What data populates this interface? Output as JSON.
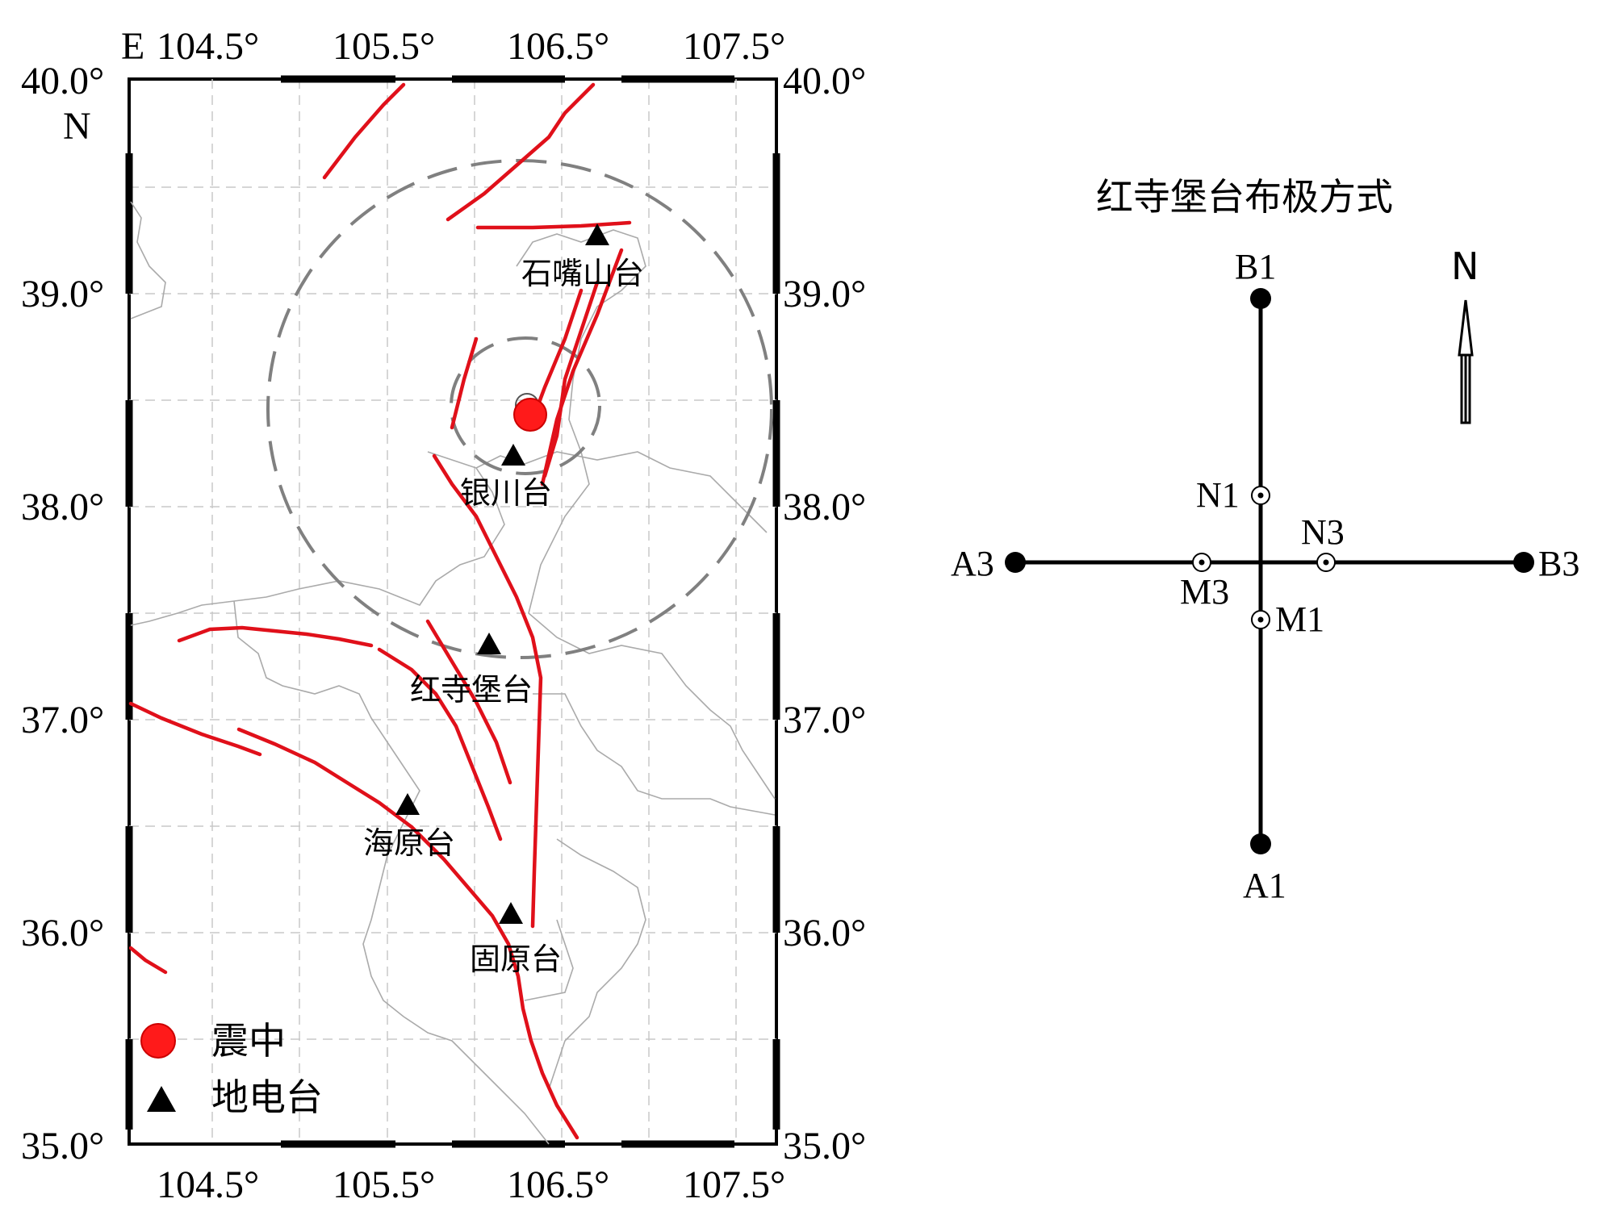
{
  "map": {
    "lon_ticks": [
      "104.5°",
      "105.5°",
      "106.5°",
      "107.5°"
    ],
    "lat_ticks": [
      "40.0°",
      "39.0°",
      "38.0°",
      "37.0°",
      "36.0°",
      "35.0°"
    ],
    "east_label": "E",
    "north_label": "N",
    "stations": [
      {
        "name": "石嘴山台"
      },
      {
        "name": "银川台"
      },
      {
        "name": "红寺堡台"
      },
      {
        "name": "海原台"
      },
      {
        "name": "固原台"
      }
    ],
    "legend": {
      "epicenter": "震中",
      "station": "地电台"
    },
    "colors": {
      "fault": "#e0101a",
      "epicenter": "#ff1a1a",
      "circle": "#808080",
      "border": "#aaaaaa"
    }
  },
  "layout": {
    "title": "红寺堡台布极方式",
    "north": "N",
    "electrodes": {
      "B1": "B1",
      "A1": "A1",
      "A3": "A3",
      "B3": "B3",
      "N1": "N1",
      "M1": "M1",
      "N3": "N3",
      "M3": "M3"
    }
  }
}
